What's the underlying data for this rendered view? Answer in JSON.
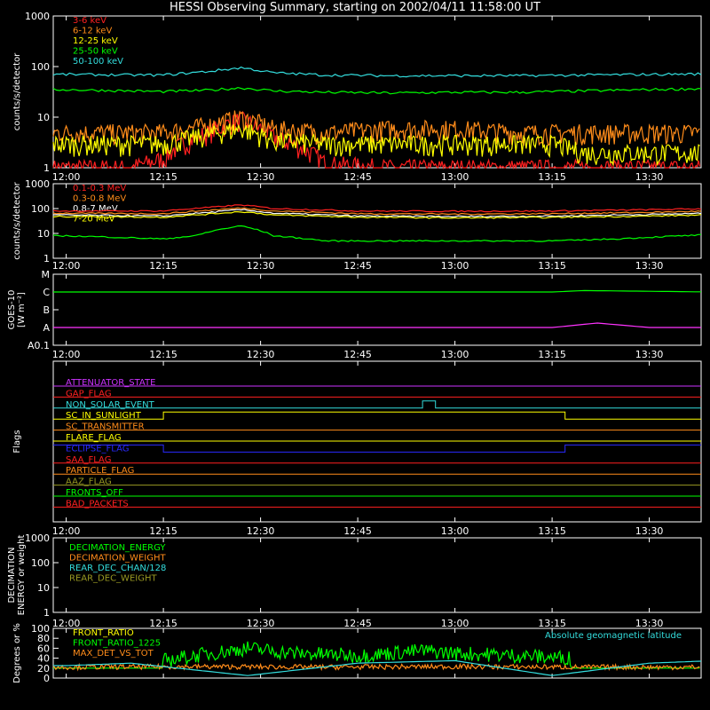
{
  "title": "HESSI Observing Summary, starting on 2002/04/11 11:58:00 UT",
  "time_ticks": [
    "12:00",
    "12:15",
    "12:30",
    "12:45",
    "13:00",
    "13:15",
    "13:30"
  ],
  "chart_data": [
    {
      "panel": "counts-low",
      "type": "line",
      "ylabel": "counts/s/detector",
      "yscale": "log",
      "ylim": [
        1,
        1000
      ],
      "yticks": [
        "1",
        "10",
        "100",
        "1000"
      ],
      "series": [
        {
          "name": "3-6 keV",
          "color": "#ff2020",
          "x": [
            "12:00",
            "12:10",
            "12:15",
            "12:22",
            "12:27",
            "12:32",
            "12:40",
            "12:50",
            "13:00",
            "13:10",
            "13:15",
            "13:20",
            "13:30",
            "13:40"
          ],
          "values": [
            1,
            1,
            1.5,
            5,
            9,
            4,
            1.2,
            1,
            1,
            1,
            1,
            1,
            1,
            1
          ]
        },
        {
          "name": "6-12 keV",
          "color": "#ff8c1a",
          "x": [
            "12:00",
            "12:10",
            "12:15",
            "12:22",
            "12:27",
            "12:32",
            "12:40",
            "12:50",
            "13:00",
            "13:10",
            "13:15",
            "13:20",
            "13:30",
            "13:40"
          ],
          "values": [
            5,
            5,
            5,
            7,
            10,
            6,
            5,
            6,
            6,
            5,
            5,
            5,
            5,
            5
          ]
        },
        {
          "name": "12-25 keV",
          "color": "#ffff00",
          "x": [
            "12:00",
            "12:10",
            "12:15",
            "12:22",
            "12:27",
            "12:32",
            "12:40",
            "12:50",
            "13:00",
            "13:10",
            "13:15",
            "13:20",
            "13:30",
            "13:40"
          ],
          "values": [
            3,
            3,
            3,
            4.5,
            6,
            3.5,
            3,
            3,
            3,
            3,
            3,
            2,
            2,
            2
          ]
        },
        {
          "name": "25-50 keV",
          "color": "#00ff00",
          "x": [
            "12:00",
            "12:10",
            "12:15",
            "12:22",
            "12:27",
            "12:32",
            "12:40",
            "12:50",
            "13:00",
            "13:10",
            "13:15",
            "13:20",
            "13:30",
            "13:40"
          ],
          "values": [
            35,
            33,
            32,
            34,
            38,
            33,
            31,
            30,
            31,
            31,
            32,
            33,
            35,
            37
          ]
        },
        {
          "name": "50-100 keV",
          "color": "#33dddd",
          "x": [
            "12:00",
            "12:10",
            "12:15",
            "12:22",
            "12:27",
            "12:32",
            "12:40",
            "12:50",
            "13:00",
            "13:10",
            "13:15",
            "13:20",
            "13:30",
            "13:40"
          ],
          "values": [
            70,
            68,
            68,
            80,
            95,
            75,
            68,
            66,
            66,
            66,
            67,
            68,
            70,
            72
          ]
        }
      ]
    },
    {
      "panel": "counts-high",
      "type": "line",
      "ylabel": "counts/s/detector",
      "yscale": "log",
      "ylim": [
        1,
        1000
      ],
      "yticks": [
        "1",
        "10",
        "100",
        "1000"
      ],
      "series": [
        {
          "name": "0.1-0.3 MeV",
          "color": "#ff2020",
          "x": [
            "12:00",
            "12:15",
            "12:22",
            "12:27",
            "12:32",
            "12:45",
            "13:00",
            "13:15",
            "13:30",
            "13:40"
          ],
          "values": [
            80,
            80,
            110,
            140,
            100,
            80,
            78,
            80,
            90,
            100
          ]
        },
        {
          "name": "0.3-0.8 MeV",
          "color": "#ff8c1a",
          "x": [
            "12:00",
            "12:15",
            "12:22",
            "12:27",
            "12:32",
            "12:45",
            "13:00",
            "13:15",
            "13:30",
            "13:40"
          ],
          "values": [
            65,
            62,
            85,
            105,
            80,
            62,
            60,
            62,
            70,
            80
          ]
        },
        {
          "name": "0.8-7 MeV",
          "color": "#ffffff",
          "x": [
            "12:00",
            "12:15",
            "12:22",
            "12:27",
            "12:32",
            "12:45",
            "13:00",
            "13:15",
            "13:30",
            "13:40"
          ],
          "values": [
            55,
            50,
            70,
            90,
            65,
            50,
            48,
            50,
            58,
            65
          ]
        },
        {
          "name": "7-20 MeV",
          "color": "#ffff00",
          "x": [
            "12:00",
            "12:15",
            "12:22",
            "12:27",
            "12:32",
            "12:45",
            "13:00",
            "13:15",
            "13:30",
            "13:40"
          ],
          "values": [
            48,
            45,
            60,
            75,
            55,
            45,
            42,
            44,
            50,
            56
          ]
        },
        {
          "name": "",
          "color": "#00ff00",
          "x": [
            "12:00",
            "12:15",
            "12:20",
            "12:27",
            "12:32",
            "12:40",
            "13:00",
            "13:15",
            "13:25",
            "13:40"
          ],
          "values": [
            8,
            6,
            8,
            20,
            8,
            5,
            5,
            5,
            6,
            9
          ]
        }
      ]
    },
    {
      "panel": "goes",
      "type": "line",
      "ylabel": "GOES-10 [W m^-2]",
      "ylabel_display": [
        "GOES-10",
        "[W m⁻²]"
      ],
      "yticks": [
        "A0.1",
        "A",
        "B",
        "C",
        "M"
      ],
      "series": [
        {
          "name": "",
          "color": "#00ff00",
          "x": [
            "12:00",
            "12:30",
            "13:00",
            "13:15",
            "13:20",
            "13:40"
          ],
          "values": [
            "C",
            "C",
            "C",
            "C",
            "C+",
            "C"
          ]
        },
        {
          "name": "",
          "color": "#ff33ff",
          "x": [
            "12:00",
            "12:30",
            "13:00",
            "13:15",
            "13:22",
            "13:30",
            "13:40"
          ],
          "values": [
            "A",
            "A",
            "A",
            "A",
            "A+",
            "A",
            "A"
          ]
        }
      ]
    },
    {
      "panel": "flags",
      "type": "line",
      "ylabel": "Flags",
      "series": [
        {
          "name": "ATTENUATOR_STATE",
          "color": "#cc33ff"
        },
        {
          "name": "GAP_FLAG",
          "color": "#ff2020"
        },
        {
          "name": "NON_SOLAR_EVENT",
          "color": "#33dddd"
        },
        {
          "name": "SC_IN_SUNLIGHT",
          "color": "#ffff00"
        },
        {
          "name": "SC_TRANSMITTER",
          "color": "#ff8c1a"
        },
        {
          "name": "FLARE_FLAG",
          "color": "#ffff00"
        },
        {
          "name": "ECLIPSE_FLAG",
          "color": "#2a2aff"
        },
        {
          "name": "SAA_FLAG",
          "color": "#ff2020"
        },
        {
          "name": "PARTICLE_FLAG",
          "color": "#ff8c1a"
        },
        {
          "name": "AAZ_FLAG",
          "color": "#999922"
        },
        {
          "name": "FRONTS_OFF",
          "color": "#00ff00"
        },
        {
          "name": "BAD_PACKETS",
          "color": "#ff2020"
        }
      ]
    },
    {
      "panel": "decimation",
      "type": "line",
      "ylabel": "DECIMATION ENERGY or weight",
      "ylabel_display": [
        "DECIMATION",
        "ENERGY or weight"
      ],
      "yscale": "log",
      "ylim": [
        1,
        1000
      ],
      "yticks": [
        "1",
        "10",
        "100",
        "1000"
      ],
      "series": [
        {
          "name": "DECIMATION_ENERGY",
          "color": "#00ff00"
        },
        {
          "name": "DECIMATION_WEIGHT",
          "color": "#ff8c1a"
        },
        {
          "name": "REAR_DEC_CHAN/128",
          "color": "#33dddd"
        },
        {
          "name": "REAR_DEC_WEIGHT",
          "color": "#999922"
        }
      ]
    },
    {
      "panel": "ratios",
      "type": "line",
      "ylabel": "Degrees or %",
      "ylim": [
        0,
        100
      ],
      "yticks": [
        "0",
        "20",
        "40",
        "60",
        "80",
        "100"
      ],
      "annotation": "Absolute geomagnetic latitude",
      "series": [
        {
          "name": "FRONT_RATIO",
          "color": "#ffff00"
        },
        {
          "name": "FRONT_RATIO_1225",
          "color": "#00ff00",
          "x": [
            "12:15",
            "12:20",
            "12:28",
            "12:35",
            "12:45",
            "12:55",
            "13:00",
            "13:10",
            "13:18"
          ],
          "values": [
            35,
            45,
            60,
            50,
            45,
            55,
            50,
            45,
            40
          ]
        },
        {
          "name": "MAX_DET_VS_TOT",
          "color": "#ff8c1a",
          "x": [
            "12:00",
            "12:20",
            "12:40",
            "13:00",
            "13:20",
            "13:40"
          ],
          "values": [
            22,
            23,
            22,
            23,
            22,
            22
          ]
        },
        {
          "name": "Absolute geomagnetic latitude",
          "color": "#33dddd",
          "x": [
            "12:00",
            "12:10",
            "12:28",
            "12:45",
            "13:00",
            "13:15",
            "13:30",
            "13:40"
          ],
          "values": [
            25,
            30,
            5,
            30,
            35,
            5,
            30,
            35
          ]
        }
      ]
    }
  ]
}
